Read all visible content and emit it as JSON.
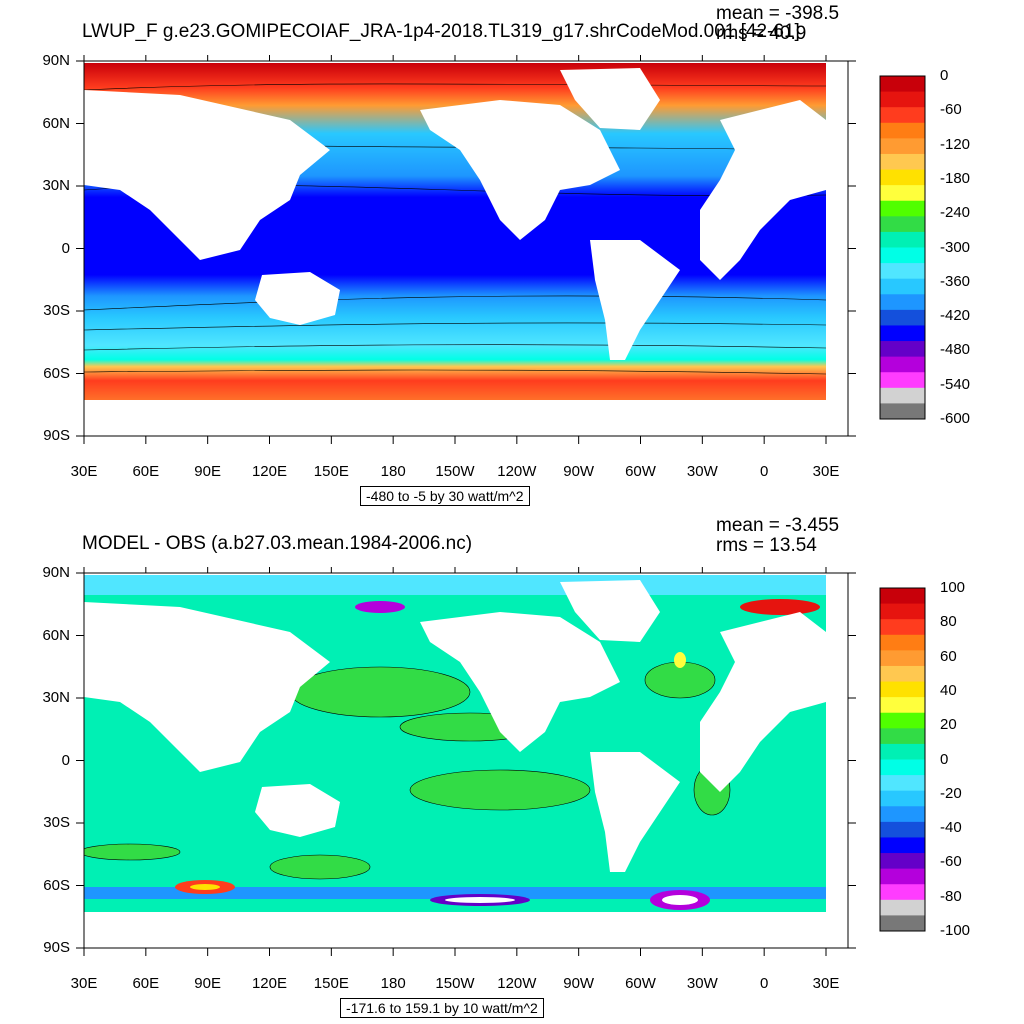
{
  "panels": [
    {
      "title": "LWUP_F g.e23.GOMIPECOIAF_JRA-1p4-2018.TL319_g17.shrCodeMod.001 [42-61]",
      "mean": "mean = -398.5",
      "rms": "rms = 40.9",
      "contour_info": "-480 to -5 by 30 watt/m^2",
      "colorbar_labels": [
        "0",
        "-60",
        "-120",
        "-180",
        "-240",
        "-300",
        "-360",
        "-420",
        "-480",
        "-540",
        "-600"
      ]
    },
    {
      "title": "MODEL - OBS (a.b27.03.mean.1984-2006.nc)",
      "mean": "mean = -3.455",
      "rms": "rms = 13.54",
      "contour_info": "-171.6 to 159.1 by 10 watt/m^2",
      "colorbar_labels": [
        "100",
        "80",
        "60",
        "40",
        "20",
        "0",
        "-20",
        "-40",
        "-60",
        "-80",
        "-100"
      ]
    }
  ],
  "axes": {
    "lat_labels": [
      "90N",
      "60N",
      "30N",
      "0",
      "30S",
      "60S",
      "90S"
    ],
    "lon_labels": [
      "30E",
      "60E",
      "90E",
      "120E",
      "150E",
      "180",
      "150W",
      "120W",
      "90W",
      "60W",
      "30W",
      "0",
      "30E"
    ]
  },
  "colors": {
    "colorbar": [
      "#c8000a",
      "#e6140f",
      "#ff3c1e",
      "#ff7d14",
      "#ff9b32",
      "#ffc850",
      "#ffe100",
      "#ffff3c",
      "#50ff00",
      "#32dc46",
      "#00f0b4",
      "#00ffe6",
      "#50e6ff",
      "#28c8ff",
      "#1e96ff",
      "#1450dc",
      "#0000ff",
      "#6400c8",
      "#b400dc",
      "#ff3cff",
      "#d2d2d2",
      "#787878"
    ],
    "ocean_top_tropics": "#0000ff",
    "ocean_diff_main": "#32dc46",
    "land": "#ffffff"
  }
}
